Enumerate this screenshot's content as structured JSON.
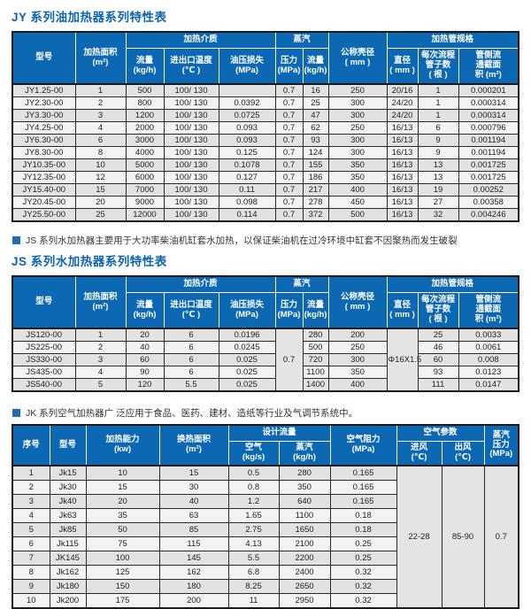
{
  "theme": {
    "header_bg": "#0d68b4",
    "title_color": "#0c63b0",
    "bullet_color": "#1e6bb8"
  },
  "jy": {
    "title": "JY 系列油加热器系列特性表",
    "headers": {
      "model": "型号",
      "area": "加热面积\n(m²)",
      "medium_group": "加热介质",
      "flow": "流量\n(kg/h)",
      "inout_temp": "进出口温度\n(℃ )",
      "oil_loss": "油压损失\n(MPa)",
      "steam_group": "蒸汽",
      "pressure": "压力\n(MPa)",
      "steam_flow": "流量\n(kg/h)",
      "shell_dia": "公称壳径\n( mm )",
      "tube_group": "加热管规格",
      "diameter": "直径\n( mm )",
      "tubes_per_pass": "每次流程\n管子数\n( 根 )",
      "tube_side_area": "管侧流\n通截面\n积 (m²)"
    },
    "rows": [
      [
        "JY1.25-00",
        "1",
        "500",
        "100/ 130",
        "",
        "0.7",
        "16",
        "250",
        "20/16",
        "1",
        "0.000201"
      ],
      [
        "JY2.30-00",
        "2",
        "800",
        "100/ 130",
        "0.0392",
        "0.7",
        "25",
        "300",
        "24/20",
        "1",
        "0.000314"
      ],
      [
        "JY3.30-00",
        "3",
        "1200",
        "100/ 130",
        "0.0725",
        "0.7",
        "47",
        "300",
        "24/20",
        "1",
        "0.000314"
      ],
      [
        "JY4.25-00",
        "4",
        "2000",
        "100/ 130",
        "0.093",
        "0.7",
        "62",
        "250",
        "16/13",
        "6",
        "0.000796"
      ],
      [
        "JY6.30-00",
        "6",
        "3000",
        "100/ 130",
        "0.093",
        "0.7",
        "93",
        "300",
        "16/13",
        "9",
        "0.001194"
      ],
      [
        "JY8.30-00",
        "8",
        "4000",
        "100/ 130",
        "0.125",
        "0.7",
        "124",
        "300",
        "16/13",
        "9",
        "0.001194"
      ],
      [
        "JY10.35-00",
        "10",
        "5000",
        "100/ 130",
        "0.1078",
        "0.7",
        "155",
        "350",
        "16/13",
        "13",
        "0.001725"
      ],
      [
        "JY12.35-00",
        "12",
        "6000",
        "100/ 130",
        "0.127",
        "0.7",
        "186",
        "350",
        "16/13",
        "13",
        "0.001725"
      ],
      [
        "JY15.40-00",
        "15",
        "7000",
        "100/ 130",
        "0.11",
        "0.7",
        "217",
        "400",
        "16/13",
        "19",
        "0.00252"
      ],
      [
        "JY20.45-00",
        "20",
        "9000",
        "100/ 130",
        "0.098",
        "0.7",
        "278",
        "450",
        "16/13",
        "27",
        "0.00358"
      ],
      [
        "JY25.50-00",
        "25",
        "12000",
        "100/ 130",
        "0.114",
        "0.7",
        "372",
        "500",
        "16/13",
        "32",
        "0.004246"
      ]
    ]
  },
  "js": {
    "note": "JS 系列水加热器主要用于大功率柴油机缸套水加热，以保证柴油机在过冷环境中缸套不因聚热而发生破裂",
    "title": "JS 系列水加热器系列特性表",
    "headers": {
      "model": "型号",
      "area": "加热面积\n(m²)",
      "medium_group": "加热介质",
      "flow": "流量\n(kg/h)",
      "inout_temp": "进出口温度\n(℃ )",
      "oil_loss": "油压损失\n(MPa)",
      "steam_group": "蒸汽",
      "pressure": "压力\n(MPa)",
      "steam_flow": "流量\n(kg/h)",
      "shell_dia": "公称壳径\n( mm )",
      "tube_group": "加热管规格",
      "diameter": "直径\n( mm )",
      "tubes_per_pass": "每次流程\n管子数\n( 根 )",
      "tube_side_area": "管侧流\n通截面\n积 (m²)"
    },
    "rows": [
      [
        "JS120-00",
        "1",
        "20",
        "6",
        "0.0196",
        "280",
        "200",
        "25",
        "0.0033"
      ],
      [
        "JS225-00",
        "2",
        "40",
        "6",
        "0.0245",
        "500",
        "250",
        "46",
        "0.0061"
      ],
      [
        "JS330-00",
        "3",
        "60",
        "6",
        "0.025",
        "720",
        "300",
        "60",
        "0.008"
      ],
      [
        "JS435-00",
        "4",
        "90",
        "6",
        "0.025",
        "1100",
        "350",
        "93",
        "0.0123"
      ],
      [
        "JS540-00",
        "5",
        "120",
        "5.5",
        "0.025",
        "1400",
        "400",
        "111",
        "0.0147"
      ]
    ],
    "merged": {
      "pressure": "0.7",
      "diameter": "Φ16X1.5"
    }
  },
  "jk": {
    "note": "JK 系列空气加热器广 泛应用于食品、医药、建材、造纸等行业及气调节系统中。",
    "headers": {
      "index": "序号",
      "model": "型号",
      "capacity": "加热能力\n(kw)",
      "exchange_area": "换热面积\n(m²)",
      "design_flow_group": "设计流量",
      "air": "空气\n(kg/s)",
      "steam": "蒸汽\n(kg/h)",
      "air_resistance": "空气阻力\n(MPa)",
      "air_params_group": "空气参数",
      "inlet": "进风\n(℃)",
      "outlet": "出风\n(℃)",
      "steam_pressure": "蒸汽\n压力\n(MPa)"
    },
    "rows": [
      [
        "1",
        "Jk15",
        "10",
        "15",
        "0.5",
        "280",
        "0.165"
      ],
      [
        "2",
        "Jk30",
        "15",
        "30",
        "0.8",
        "350",
        "0.165"
      ],
      [
        "3",
        "Jk40",
        "20",
        "40",
        "1.2",
        "640",
        "0.165"
      ],
      [
        "4",
        "Jk63",
        "35",
        "63",
        "1.65",
        "1100",
        "0.18"
      ],
      [
        "5",
        "Jk85",
        "50",
        "85",
        "2.75",
        "1650",
        "0.18"
      ],
      [
        "6",
        "Jk115",
        "75",
        "115",
        "4.13",
        "2100",
        "0.25"
      ],
      [
        "7",
        "JK145",
        "100",
        "145",
        "5.5",
        "2200",
        "0.25"
      ],
      [
        "8",
        "Jk162",
        "125",
        "162",
        "6.8",
        "2400",
        "0.32"
      ],
      [
        "9",
        "Jk180",
        "150",
        "180",
        "8.25",
        "2650",
        "0.32"
      ],
      [
        "10",
        "Jk200",
        "175",
        "200",
        "11",
        "2950",
        "0.32"
      ]
    ],
    "merged": {
      "inlet": "22-28",
      "outlet": "85-90",
      "steam_pressure": "0.7"
    }
  }
}
